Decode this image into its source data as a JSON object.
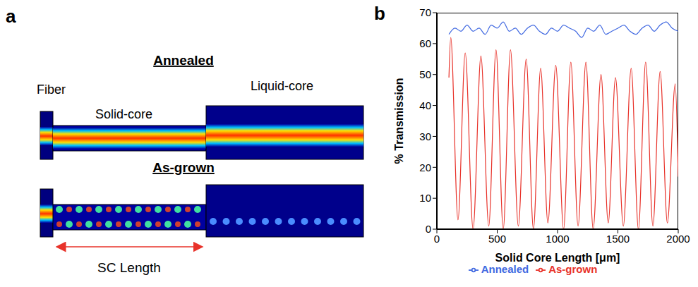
{
  "diagram": {
    "letter": "a",
    "annealed_title": "Annealed",
    "as_grown_title": "As-grown",
    "fiber": "Fiber",
    "solid_core": "Solid-core",
    "liquid_core": "Liquid-core",
    "sc_length": "SC Length"
  },
  "chart_letter": "b",
  "chart_data": {
    "type": "line",
    "xlabel": "Solid Core Length [μm]",
    "ylabel": "% Transmission",
    "xlim": [
      0,
      2000
    ],
    "xticks": [
      0,
      500,
      1000,
      1500,
      2000
    ],
    "ylim": [
      0,
      70
    ],
    "yticks": [
      0,
      10,
      20,
      30,
      40,
      50,
      60,
      70
    ],
    "grid": false,
    "legend": "bottom",
    "series": [
      {
        "name": "Annealed",
        "color": "#4169e1",
        "x": [
          100,
          150,
          200,
          250,
          300,
          350,
          400,
          450,
          500,
          550,
          600,
          650,
          700,
          750,
          800,
          850,
          900,
          950,
          1000,
          1050,
          1100,
          1150,
          1200,
          1250,
          1300,
          1350,
          1400,
          1450,
          1500,
          1550,
          1600,
          1650,
          1700,
          1750,
          1800,
          1850,
          1900,
          1950,
          2000
        ],
        "values": [
          63,
          65,
          64,
          66,
          64,
          65,
          63,
          66,
          65,
          67,
          64,
          65,
          63,
          65,
          66,
          64,
          63,
          65,
          64,
          66,
          65,
          64,
          62,
          65,
          64,
          66,
          63,
          64,
          65,
          66,
          64,
          63,
          65,
          66,
          64,
          66,
          67,
          65,
          64
        ]
      },
      {
        "name": "As-grown",
        "color": "#e8322a",
        "x": [
          100,
          115,
          175,
          235,
          300,
          365,
          430,
          490,
          550,
          610,
          675,
          740,
          800,
          860,
          920,
          985,
          1050,
          1110,
          1170,
          1235,
          1295,
          1360,
          1420,
          1480,
          1545,
          1610,
          1670,
          1730,
          1790,
          1850,
          1910,
          1975,
          2000
        ],
        "values": [
          49,
          62,
          3,
          57,
          0,
          56,
          1,
          58,
          0,
          58,
          1,
          55,
          0,
          52,
          2,
          53,
          0,
          54,
          1,
          54,
          0,
          50,
          2,
          49,
          1,
          52,
          0,
          54,
          1,
          51,
          2,
          47,
          17
        ]
      }
    ]
  }
}
